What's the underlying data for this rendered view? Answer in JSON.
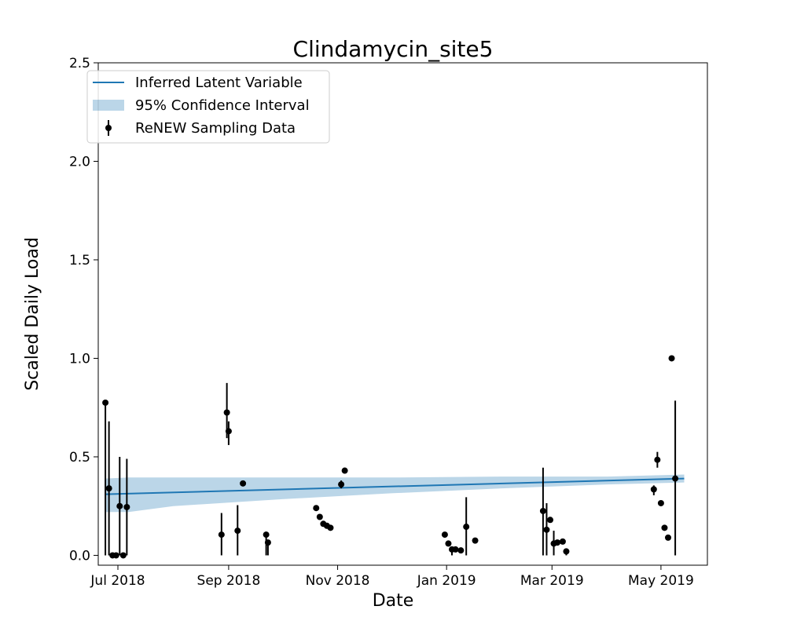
{
  "chart_data": {
    "type": "line",
    "title": "Clindamycin_site5",
    "xlabel": "Date",
    "ylabel": "Scaled Daily Load",
    "ylim": [
      -0.05,
      2.5
    ],
    "xlim": [
      "2018-06-20",
      "2019-05-27"
    ],
    "yticks": [
      0.0,
      0.5,
      1.0,
      1.5,
      2.0,
      2.5
    ],
    "ytick_labels": [
      "0.0",
      "0.5",
      "1.0",
      "1.5",
      "2.0",
      "2.5"
    ],
    "xticks": [
      "2018-07-01",
      "2018-09-01",
      "2018-11-01",
      "2019-01-01",
      "2019-03-01",
      "2019-05-01"
    ],
    "xtick_labels": [
      "Jul 2018",
      "Sep 2018",
      "Nov 2018",
      "Jan 2019",
      "Mar 2019",
      "May 2019"
    ],
    "grid": false,
    "legend": {
      "placement": "top-left",
      "entries": [
        {
          "label": "Inferred Latent Variable",
          "kind": "line",
          "color": "#1f77b4"
        },
        {
          "label": "95% Confidence Interval",
          "kind": "band",
          "color": "#1f77b4"
        },
        {
          "label": "ReNEW Sampling Data",
          "kind": "errorbar",
          "color": "#000000"
        }
      ]
    },
    "series": [
      {
        "name": "Inferred Latent Variable",
        "kind": "line",
        "color": "#1f77b4",
        "x": [
          "2018-06-24",
          "2019-05-14"
        ],
        "y": [
          0.31,
          0.39
        ]
      },
      {
        "name": "95% Confidence Interval",
        "kind": "band",
        "color": "#1f77b4",
        "opacity": 0.3,
        "x": [
          "2018-06-24",
          "2018-07-07",
          "2018-08-01",
          "2018-10-01",
          "2018-12-01",
          "2019-02-01",
          "2019-04-01",
          "2019-05-14"
        ],
        "lower": [
          0.22,
          0.22,
          0.25,
          0.285,
          0.315,
          0.34,
          0.36,
          0.37
        ],
        "upper": [
          0.39,
          0.395,
          0.395,
          0.395,
          0.395,
          0.4,
          0.4,
          0.41
        ]
      },
      {
        "name": "ReNEW Sampling Data",
        "kind": "errorbar",
        "color": "#000000",
        "x": [
          "2018-06-24",
          "2018-06-26",
          "2018-06-28",
          "2018-06-30",
          "2018-07-02",
          "2018-07-04",
          "2018-07-06",
          "2018-08-28",
          "2018-08-31",
          "2018-09-01",
          "2018-09-06",
          "2018-09-09",
          "2018-09-22",
          "2018-09-23",
          "2018-10-20",
          "2018-10-22",
          "2018-10-24",
          "2018-10-26",
          "2018-10-28",
          "2018-11-03",
          "2018-11-05",
          "2018-12-31",
          "2019-01-02",
          "2019-01-04",
          "2019-01-06",
          "2019-01-09",
          "2019-01-12",
          "2019-01-17",
          "2019-02-24",
          "2019-02-26",
          "2019-02-28",
          "2019-03-02",
          "2019-03-04",
          "2019-03-07",
          "2019-03-09",
          "2019-04-27",
          "2019-04-29",
          "2019-05-01",
          "2019-05-03",
          "2019-05-05",
          "2019-05-07",
          "2019-05-09"
        ],
        "y": [
          0.775,
          0.34,
          0.0,
          0.0,
          0.25,
          0.0,
          0.245,
          0.105,
          0.725,
          0.63,
          0.125,
          0.365,
          0.105,
          0.065,
          0.24,
          0.195,
          0.16,
          0.15,
          0.14,
          0.36,
          0.43,
          0.105,
          0.06,
          0.03,
          0.03,
          0.025,
          0.145,
          0.075,
          0.225,
          0.13,
          0.18,
          0.06,
          0.065,
          0.07,
          0.02,
          0.335,
          0.485,
          0.265,
          0.14,
          0.09,
          1.0,
          0.39
        ],
        "err_low": [
          0.775,
          0.34,
          0.0,
          0.0,
          0.25,
          0.0,
          0.245,
          0.105,
          0.13,
          0.07,
          0.125,
          0.0,
          0.105,
          0.065,
          0.0,
          0.0,
          0.0,
          0.0,
          0.0,
          0.02,
          0.0,
          0.0,
          0.0,
          0.03,
          0.0,
          0.0,
          0.145,
          0.0,
          0.225,
          0.13,
          0.0,
          0.06,
          0.0,
          0.0,
          0.02,
          0.03,
          0.04,
          0.0,
          0.0,
          0.0,
          0.0,
          0.39
        ],
        "err_high": [
          0.0,
          0.34,
          0.0,
          0.0,
          0.25,
          0.0,
          0.245,
          0.11,
          0.15,
          0.05,
          0.13,
          0.0,
          0.015,
          0.0,
          0.0,
          0.0,
          0.0,
          0.0,
          0.0,
          0.02,
          0.0,
          0.0,
          0.0,
          0.0,
          0.0,
          0.0,
          0.15,
          0.0,
          0.22,
          0.135,
          0.0,
          0.065,
          0.0,
          0.0,
          0.01,
          0.02,
          0.04,
          0.0,
          0.0,
          0.0,
          0.0,
          0.395
        ]
      }
    ]
  }
}
